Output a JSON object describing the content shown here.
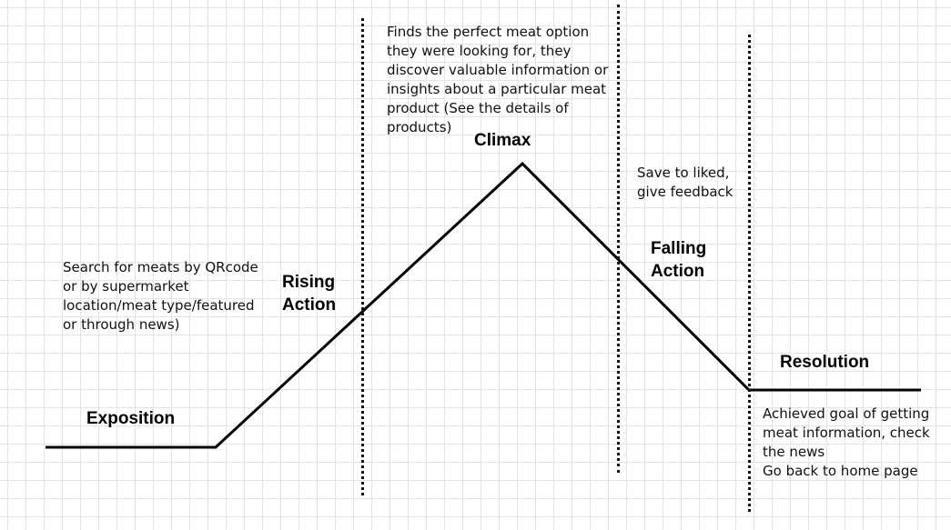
{
  "stages": {
    "exposition": "Exposition",
    "rising": "Rising\nAction",
    "climax": "Climax",
    "falling": "Falling\nAction",
    "resolution": "Resolution"
  },
  "notes": {
    "exposition": "Search for meats by QRcode\nor by supermarket\nlocation/meat type/featured\nor through news)",
    "climax": "Finds the perfect meat option\nthey were looking for, they\ndiscover valuable information or\ninsights about a particular meat\nproduct (See the details of\nproducts)",
    "falling": "Save to liked,\ngive feedback",
    "resolution": "Achieved goal of getting\nmeat information, check\nthe news\nGo back to home page"
  }
}
